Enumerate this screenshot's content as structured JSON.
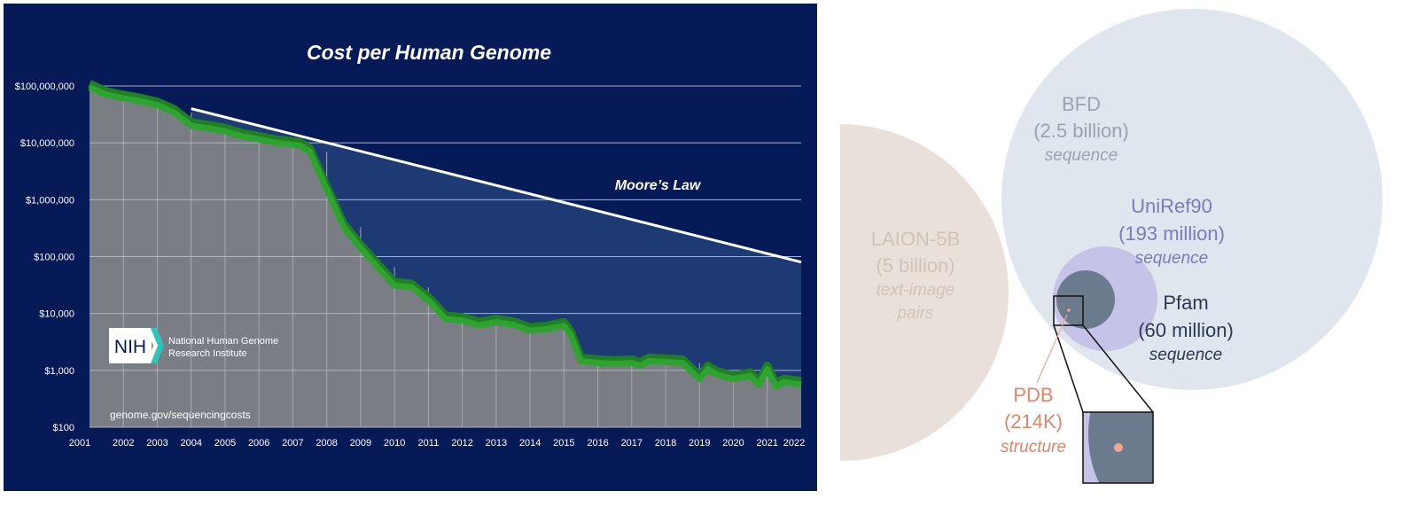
{
  "chart_data": [
    {
      "type": "area",
      "title": "Cost per Human Genome",
      "y_scale": "log",
      "ylim": [
        100,
        100000000
      ],
      "xlim": [
        2001,
        2022
      ],
      "y_tick_labels": [
        "$100,000,000",
        "$10,000,000",
        "$1,000,000",
        "$100,000",
        "$10,000",
        "$1,000",
        "$100"
      ],
      "y_tick_values": [
        100000000,
        10000000,
        1000000,
        100000,
        10000,
        1000,
        100
      ],
      "x_tick_labels": [
        "2001",
        "2002",
        "2003",
        "2004",
        "2005",
        "2006",
        "2007",
        "2008",
        "2009",
        "2010",
        "2011",
        "2012",
        "2013",
        "2014",
        "2015",
        "2016",
        "2017",
        "2018",
        "2019",
        "2020",
        "2021",
        "2022"
      ],
      "grid": true,
      "series": [
        {
          "name": "",
          "color": "#2fa32f",
          "x": [
            2001.0,
            2001.5,
            2002.0,
            2002.5,
            2003.0,
            2003.5,
            2004.0,
            2004.5,
            2005.0,
            2005.5,
            2006.0,
            2006.5,
            2007.0,
            2007.2,
            2007.5,
            2008.0,
            2008.5,
            2009.0,
            2009.5,
            2010.0,
            2010.5,
            2011.0,
            2011.5,
            2012.0,
            2012.5,
            2013.0,
            2013.5,
            2014.0,
            2014.5,
            2015.0,
            2015.2,
            2015.5,
            2016.0,
            2016.5,
            2017.0,
            2017.25,
            2017.5,
            2018.0,
            2018.5,
            2019.0,
            2019.25,
            2019.5,
            2020.0,
            2020.5,
            2020.75,
            2021.0,
            2021.25,
            2021.5,
            2022.0
          ],
          "values": [
            95000000,
            70000000,
            61000000,
            54000000,
            46000000,
            34000000,
            20000000,
            18000000,
            16000000,
            13000000,
            11500000,
            10000000,
            9300000,
            9000000,
            7000000,
            1500000,
            330000,
            140000,
            65000,
            31000,
            29000,
            17000,
            8000,
            7500,
            6200,
            7000,
            6300,
            5000,
            5300,
            6100,
            4200,
            1450,
            1350,
            1300,
            1350,
            1200,
            1450,
            1400,
            1350,
            700,
            1050,
            850,
            700,
            800,
            550,
            1050,
            520,
            620,
            560
          ]
        },
        {
          "name": "Moore’s Law",
          "color": "#ffffff",
          "x": [
            2004,
            2022
          ],
          "values": [
            40000000,
            80000
          ]
        }
      ],
      "annotations": [
        "Moore’s Law",
        "genome.gov/sequencingcosts"
      ],
      "logo": {
        "mark": "NIH",
        "text_line1": "National Human Genome",
        "text_line2": "Research Institute"
      },
      "colors": {
        "background": "#051a57",
        "plot_area": "#7b7d85",
        "gap_fill": "#1e3a74",
        "line": "#2fa32f",
        "moore_line": "#ffffff",
        "logo_arrow": "#2ec4b6"
      }
    },
    {
      "type": "bubble",
      "bubbles": [
        {
          "name": "LAION-5B",
          "count": "(5 billion)",
          "kind_line1": "text-image",
          "kind_line2": "pairs",
          "color": "#e8e0d9",
          "text_color": "#d2c4b5"
        },
        {
          "name": "BFD",
          "count": "(2.5 billion)",
          "kind_line1": "sequence",
          "color": "#dfe6ee",
          "text_color": "#9aa3b2"
        },
        {
          "name": "UniRef90",
          "count": "(193 million)",
          "kind_line1": "sequence",
          "color": "#c5c3e7",
          "text_color": "#7b7cb8"
        },
        {
          "name": "Pfam",
          "count": "(60 million)",
          "kind_line1": "sequence",
          "color": "#6c7a8d",
          "text_color": "#2c3a50"
        },
        {
          "name": "PDB",
          "count": "(214K)",
          "kind_line1": "structure",
          "color": "#f4a494",
          "text_color": "#e0856b"
        }
      ]
    }
  ]
}
